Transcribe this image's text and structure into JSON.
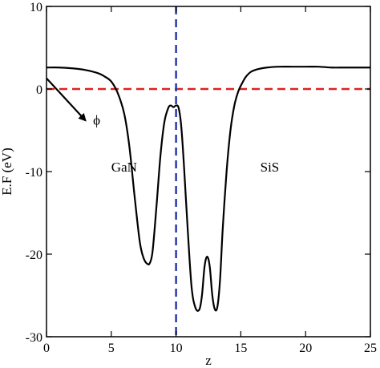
{
  "chart_data": {
    "type": "line",
    "xlabel": "z",
    "ylabel": "E.F (eV)",
    "xlim": [
      0,
      25
    ],
    "ylim": [
      -30,
      10
    ],
    "x_ticks": [
      0,
      5,
      10,
      15,
      20,
      25
    ],
    "y_ticks": [
      10,
      0,
      -10,
      -20,
      -30
    ],
    "grid": false,
    "series": [
      {
        "color": "#000000",
        "x": [
          0,
          1,
          2,
          3,
          4,
          4.5,
          5,
          5.5,
          6,
          6.4,
          6.8,
          7.2,
          7.5,
          7.8,
          8.0,
          8.2,
          8.5,
          8.8,
          9.1,
          9.4,
          9.6,
          9.8,
          10.0,
          10.2,
          10.4,
          10.6,
          10.9,
          11.2,
          11.5,
          11.8,
          12.0,
          12.2,
          12.4,
          12.6,
          12.8,
          13.0,
          13.2,
          13.4,
          13.6,
          13.9,
          14.2,
          14.5,
          14.8,
          15.1,
          15.4,
          15.8,
          16.3,
          17,
          18,
          19,
          20,
          21,
          22,
          23,
          24,
          25
        ],
        "y": [
          2.6,
          2.6,
          2.5,
          2.3,
          1.9,
          1.5,
          0.9,
          -0.5,
          -3,
          -7,
          -13,
          -18.5,
          -20.5,
          -21.2,
          -21.0,
          -19.5,
          -14,
          -8,
          -4,
          -2.3,
          -2.0,
          -2.2,
          -2.0,
          -2.3,
          -4.5,
          -9,
          -17,
          -24,
          -26.5,
          -26.7,
          -25,
          -21.5,
          -20.3,
          -21.5,
          -25,
          -26.7,
          -26.3,
          -23,
          -17,
          -10,
          -5,
          -2,
          -0.3,
          0.7,
          1.5,
          2.1,
          2.4,
          2.6,
          2.7,
          2.7,
          2.7,
          2.7,
          2.6,
          2.6,
          2.6,
          2.6
        ]
      }
    ],
    "reference_lines": [
      {
        "orientation": "horizontal",
        "value": 0,
        "color": "#dd2222",
        "style": "dashed"
      },
      {
        "orientation": "vertical",
        "value": 10,
        "color": "#2a3aa8",
        "style": "dashed"
      }
    ],
    "annotations": [
      {
        "text": "GaN",
        "x": 5,
        "y": -10
      },
      {
        "text": "SiS",
        "x": 16.5,
        "y": -10
      },
      {
        "text": "ϕ",
        "x": 3.6,
        "y": -4.3
      }
    ],
    "arrow": {
      "from": [
        0,
        1.3
      ],
      "to": [
        3.0,
        -3.8
      ]
    }
  }
}
